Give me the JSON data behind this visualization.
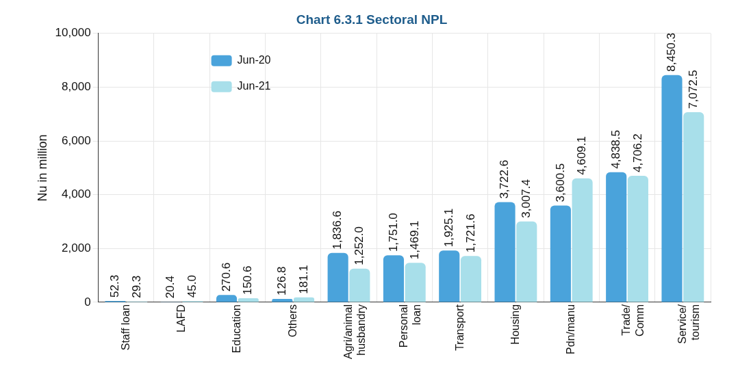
{
  "chart_data": {
    "type": "bar",
    "title": "Chart 6.3.1 Sectoral NPL",
    "ylabel": "Nu in million",
    "categories": [
      "Staff loan",
      "LAFD",
      "Education",
      "Others",
      "Agri/animal\nhusbandry",
      "Personal\nloan",
      "Transport",
      "Housing",
      "Pdn/manu",
      "Trade/\nComm",
      "Service/\ntourism"
    ],
    "series": [
      {
        "name": "Jun-20",
        "color": "#4aa3db",
        "values": [
          52.3,
          20.4,
          270.6,
          126.8,
          1836.6,
          1751.0,
          1925.1,
          3722.6,
          3600.5,
          4838.5,
          8450.3
        ],
        "value_labels": [
          "52.3",
          "20.4",
          "270.6",
          "126.8",
          "1,836.6",
          "1,751.0",
          "1,925.1",
          "3,722.6",
          "3,600.5",
          "4,838.5",
          "8,450.3"
        ]
      },
      {
        "name": "Jun-21",
        "color": "#a8dfea",
        "values": [
          29.3,
          45.0,
          150.6,
          181.1,
          1252.0,
          1469.1,
          1721.6,
          3007.4,
          4609.1,
          4706.2,
          7072.5
        ],
        "value_labels": [
          "29.3",
          "45.0",
          "150.6",
          "181.1",
          "1,252.0",
          "1,469.1",
          "1,721.6",
          "3,007.4",
          "4,609.1",
          "4,706.2",
          "7,072.5"
        ]
      }
    ],
    "ylim": [
      0,
      10000
    ],
    "yticks": [
      {
        "value": 0,
        "label": "0"
      },
      {
        "value": 2000,
        "label": "2,000"
      },
      {
        "value": 4000,
        "label": "4,000"
      },
      {
        "value": 6000,
        "label": "6,000"
      },
      {
        "value": 8000,
        "label": "8,000"
      },
      {
        "value": 10000,
        "label": "10,000"
      }
    ],
    "grid": true,
    "legend": "top left"
  }
}
